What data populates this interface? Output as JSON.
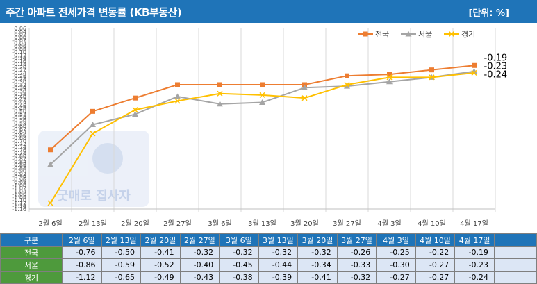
{
  "header": {
    "title": "주간 아파트 전세가격 변동률 (KB부동산)",
    "unit": "[단위: %]"
  },
  "chart_data": {
    "type": "line",
    "categories": [
      "2월 6일",
      "2월 13일",
      "2월 20일",
      "2월 27일",
      "3월 6일",
      "3월 13일",
      "3월 20일",
      "3월 27일",
      "4월 3일",
      "4월 10일",
      "4월 17일"
    ],
    "series": [
      {
        "name": "전국",
        "values": [
          -0.76,
          -0.5,
          -0.41,
          -0.32,
          -0.32,
          -0.32,
          -0.32,
          -0.26,
          -0.25,
          -0.22,
          -0.19
        ],
        "color": "#ed7d31",
        "marker": "square"
      },
      {
        "name": "서울",
        "values": [
          -0.86,
          -0.59,
          -0.52,
          -0.4,
          -0.45,
          -0.44,
          -0.34,
          -0.33,
          -0.3,
          -0.27,
          -0.23
        ],
        "color": "#a5a5a5",
        "marker": "triangle"
      },
      {
        "name": "경기",
        "values": [
          -1.12,
          -0.65,
          -0.49,
          -0.43,
          -0.38,
          -0.39,
          -0.41,
          -0.32,
          -0.27,
          -0.27,
          -0.24
        ],
        "color": "#ffc000",
        "marker": "x"
      }
    ],
    "end_labels": [
      "-0.19",
      "-0.23",
      "-0.24"
    ],
    "ylim": [
      -1.16,
      0.06
    ],
    "ytick_step": 0.02,
    "legend": "top-right",
    "grid": "vertical"
  },
  "table": {
    "corner": "구분",
    "rows": [
      {
        "label": "전국",
        "values": [
          "-0.76",
          "-0.50",
          "-0.41",
          "-0.32",
          "-0.32",
          "-0.32",
          "-0.32",
          "-0.26",
          "-0.25",
          "-0.22",
          "-0.19"
        ]
      },
      {
        "label": "서울",
        "values": [
          "-0.86",
          "-0.59",
          "-0.52",
          "-0.40",
          "-0.45",
          "-0.44",
          "-0.34",
          "-0.33",
          "-0.30",
          "-0.27",
          "-0.23"
        ]
      },
      {
        "label": "경기",
        "values": [
          "-1.12",
          "-0.65",
          "-0.49",
          "-0.43",
          "-0.38",
          "-0.39",
          "-0.41",
          "-0.32",
          "-0.27",
          "-0.27",
          "-0.24"
        ]
      }
    ]
  },
  "watermark": {
    "text": "굿매로 집사자"
  }
}
